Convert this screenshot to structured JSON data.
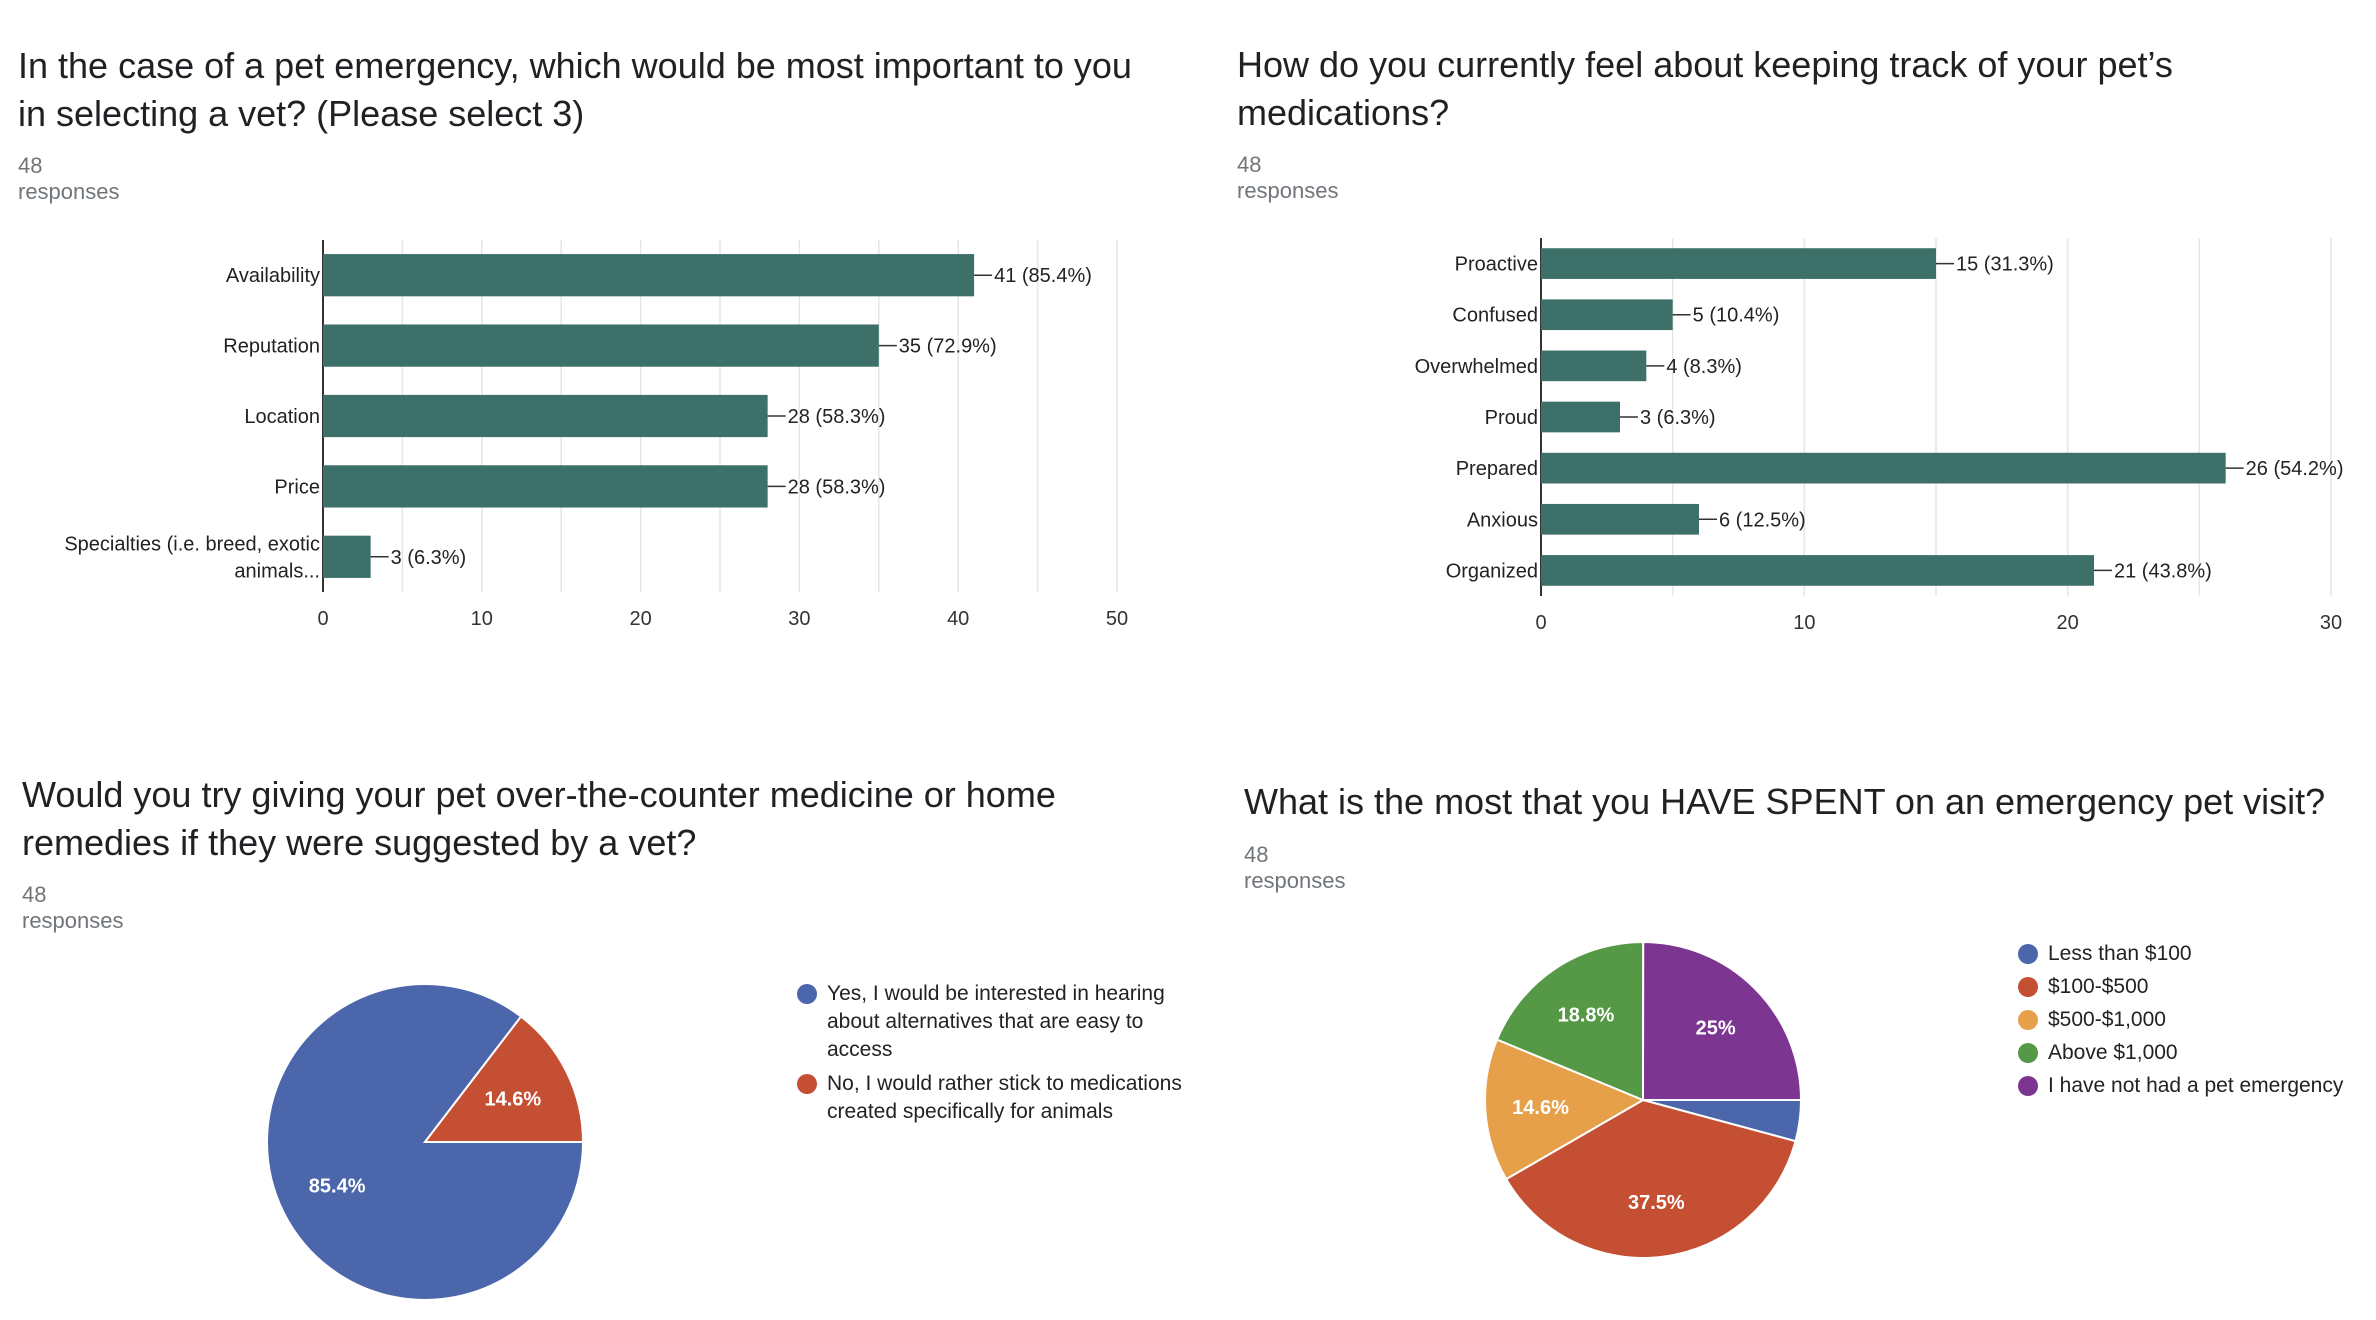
{
  "chart_data": [
    {
      "type": "bar",
      "orientation": "horizontal",
      "title": "In the case of a pet emergency, which would be most important to you in selecting a vet? (Please select 3)",
      "subtitle": "48 responses",
      "categories": [
        "Availability",
        "Reputation",
        "Location",
        "Price",
        "Specialties (i.e. breed, exotic animals..."
      ],
      "values": [
        41,
        35,
        28,
        28,
        3
      ],
      "data_labels": [
        "41 (85.4%)",
        "35 (72.9%)",
        "28 (58.3%)",
        "28 (58.3%)",
        "3 (6.3%)"
      ],
      "xlim": [
        0,
        50
      ],
      "xticks": [
        0,
        10,
        20,
        30,
        40,
        50
      ],
      "grid": true,
      "bar_color": "#3d7068"
    },
    {
      "type": "bar",
      "orientation": "horizontal",
      "title": "How do you currently feel about keeping track of your pet’s medications?",
      "subtitle": "48 responses",
      "categories": [
        "Proactive",
        "Confused",
        "Overwhelmed",
        "Proud",
        "Prepared",
        "Anxious",
        "Organized"
      ],
      "values": [
        15,
        5,
        4,
        3,
        26,
        6,
        21
      ],
      "data_labels": [
        "15 (31.3%)",
        "5 (10.4%)",
        "4 (8.3%)",
        "3 (6.3%)",
        "26 (54.2%)",
        "6 (12.5%)",
        "21 (43.8%)"
      ],
      "xlim": [
        0,
        30
      ],
      "xticks": [
        0,
        10,
        20,
        30
      ],
      "grid": true,
      "bar_color": "#3d7068"
    },
    {
      "type": "pie",
      "title": "Would you try giving your pet over-the-counter medicine or home remedies if they were suggested by a vet?",
      "subtitle": "48 responses",
      "slices": [
        {
          "label": "Yes, I would be interested in hearing about alternatives that are easy to access",
          "value": 85.4,
          "display": "85.4%",
          "color": "#4c66ac"
        },
        {
          "label": "No, I would rather stick to medications created specifically for animals",
          "value": 14.6,
          "display": "14.6%",
          "color": "#c44f33"
        }
      ],
      "legend_position": "right"
    },
    {
      "type": "pie",
      "title": "What is the most that you HAVE SPENT on an emergency pet visit?",
      "subtitle": "48 responses",
      "slices": [
        {
          "label": "Less than $100",
          "value": 4.2,
          "display": "",
          "color": "#4c66ac"
        },
        {
          "label": "$100-$500",
          "value": 37.5,
          "display": "37.5%",
          "color": "#c44f33"
        },
        {
          "label": "$500-$1,000",
          "value": 14.6,
          "display": "14.6%",
          "color": "#e6a04a"
        },
        {
          "label": "Above $1,000",
          "value": 18.8,
          "display": "18.8%",
          "color": "#559846"
        },
        {
          "label": "I have not had a pet emergency",
          "value": 25,
          "display": "25%",
          "color": "#7d3592"
        }
      ],
      "legend_position": "right"
    }
  ]
}
